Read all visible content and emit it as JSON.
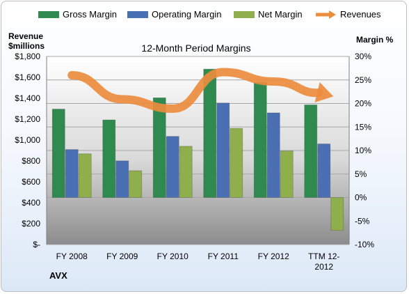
{
  "legend": [
    {
      "label": "Gross Margin",
      "color": "#2e8a4e",
      "kind": "bar"
    },
    {
      "label": "Operating Margin",
      "color": "#4a6fb3",
      "kind": "bar"
    },
    {
      "label": "Net Margin",
      "color": "#8fae4c",
      "kind": "bar"
    },
    {
      "label": "Revenues",
      "color": "#ec8c3d",
      "kind": "arrow"
    }
  ],
  "left_axis_title": [
    "Revenue",
    "$millions"
  ],
  "right_axis_title": "Margin %",
  "company": "AVX",
  "chart_data": {
    "type": "bar",
    "title": "12-Month Period Margins",
    "categories": [
      "FY 2008",
      "FY 2009",
      "FY 2010",
      "FY 2011",
      "FY 2012",
      "TTM 12-2012"
    ],
    "category_labels": [
      [
        "FY 2008"
      ],
      [
        "FY 2009"
      ],
      [
        "FY 2010"
      ],
      [
        "FY 2011"
      ],
      [
        "FY 2012"
      ],
      [
        "TTM 12-",
        "2012"
      ]
    ],
    "series": [
      {
        "name": "Gross Margin",
        "axis": "right",
        "color": "#2e8a4e",
        "values": [
          18.8,
          16.5,
          21.2,
          27.3,
          24.5,
          19.7
        ]
      },
      {
        "name": "Operating Margin",
        "axis": "right",
        "color": "#4a6fb3",
        "values": [
          10.2,
          7.8,
          13.0,
          20.1,
          18.0,
          11.4
        ]
      },
      {
        "name": "Net Margin",
        "axis": "right",
        "color": "#8fae4c",
        "values": [
          9.3,
          5.7,
          10.9,
          14.7,
          9.9,
          -7.0
        ]
      },
      {
        "name": "Revenues",
        "axis": "left",
        "color": "#ec8c3d",
        "type": "line",
        "values": [
          1620,
          1390,
          1300,
          1650,
          1560,
          1440
        ]
      }
    ],
    "left_axis": {
      "min": 0,
      "max": 1800,
      "step": 200,
      "labels": [
        "$-",
        "$200",
        "$400",
        "$600",
        "$800",
        "$1,000",
        "$1,200",
        "$1,400",
        "$1,600",
        "$1,800"
      ]
    },
    "right_axis": {
      "min": -10,
      "max": 30,
      "step": 5,
      "labels": [
        "-10%",
        "-5%",
        "0%",
        "5%",
        "10%",
        "15%",
        "20%",
        "25%",
        "30%"
      ]
    },
    "grid": true
  }
}
